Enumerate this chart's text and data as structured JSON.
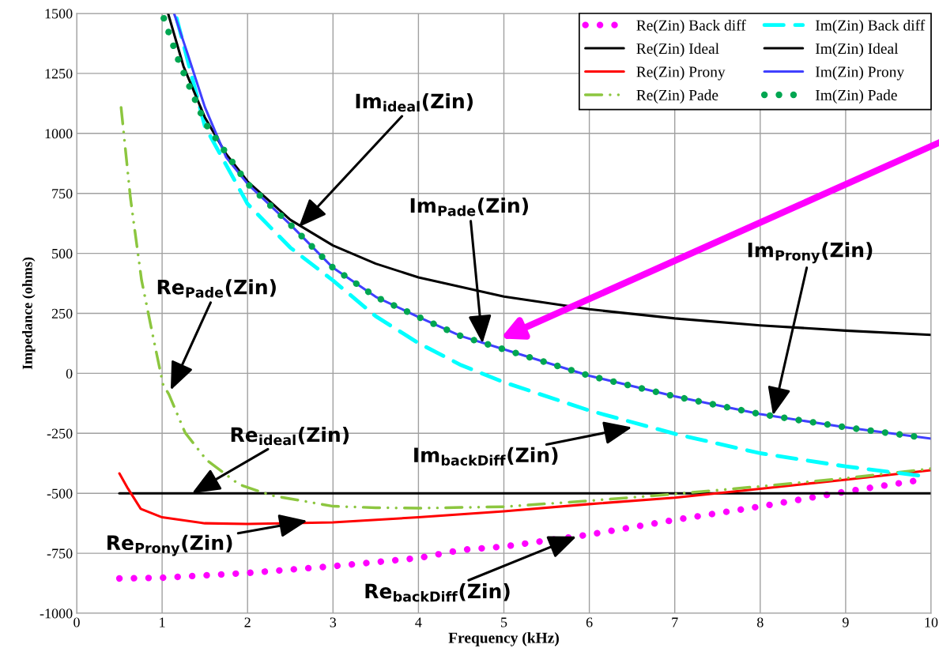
{
  "chart_data": {
    "type": "line",
    "xlabel": "Frequency (kHz)",
    "ylabel": "Impedance (ohms)",
    "xlim": [
      0,
      10
    ],
    "xticks": [
      0,
      1,
      2,
      3,
      4,
      5,
      6,
      7,
      8,
      9,
      10
    ],
    "ylim": [
      -1000,
      1500
    ],
    "yticks": [
      -1000,
      -750,
      -500,
      -250,
      0,
      250,
      500,
      750,
      1000,
      1250,
      1500
    ],
    "grid": true,
    "legend": "top right",
    "series": [
      {
        "name": "Re(Zin) Back diff",
        "color": "#ff00ff",
        "line_style": "dotted",
        "x": [
          0.5,
          1,
          2,
          3,
          4,
          4.5,
          5,
          6,
          7,
          8,
          9,
          9.9
        ],
        "values": [
          -855,
          -852,
          -832,
          -804,
          -770,
          -736,
          -722,
          -672,
          -611,
          -555,
          -493,
          -443
        ]
      },
      {
        "name": "Re(Zin) Ideal",
        "color": "#000000",
        "line_style": "solid",
        "x": [
          0.5,
          10
        ],
        "values": [
          -500,
          -500
        ]
      },
      {
        "name": "Re(Zin) Prony",
        "color": "#ff0000",
        "line_style": "solid",
        "x": [
          0.5,
          0.6,
          0.75,
          1,
          1.5,
          2,
          3,
          4,
          5,
          6,
          7,
          8,
          9,
          10
        ],
        "values": [
          -417,
          -480,
          -565,
          -600,
          -625,
          -628,
          -621,
          -600,
          -575,
          -545,
          -518,
          -481,
          -443,
          -404
        ]
      },
      {
        "name": "Re(Zin) Pade",
        "color": "#8cc63f",
        "line_style": "dashdot",
        "x": [
          0.52,
          0.63,
          0.76,
          0.89,
          1.01,
          1.08,
          1.27,
          1.52,
          1.9,
          2.28,
          3,
          3.5,
          4,
          5,
          6,
          7,
          8,
          9,
          10
        ],
        "values": [
          1108,
          729,
          387,
          160,
          -45,
          -88,
          -248,
          -361,
          -463,
          -509,
          -554,
          -560,
          -562,
          -556,
          -531,
          -503,
          -471,
          -437,
          -397
        ]
      },
      {
        "name": "Im(Zin) Back diff",
        "color": "#00ffff",
        "line_style": "dashed",
        "x": [
          1.17,
          1.5,
          2,
          2.5,
          3,
          3.5,
          4,
          4.5,
          5,
          6,
          7,
          8,
          9,
          9.9
        ],
        "values": [
          1480,
          1030,
          706,
          524,
          387,
          238,
          126,
          34,
          -37,
          -155,
          -252,
          -333,
          -388,
          -428
        ]
      },
      {
        "name": "Im(Zin) Ideal",
        "color": "#000000",
        "line_style": "solid",
        "x": [
          1.07,
          1.25,
          1.5,
          1.75,
          2,
          2.5,
          3,
          3.5,
          4,
          5,
          6,
          7,
          8,
          9,
          10
        ],
        "values": [
          1500,
          1280,
          1067,
          914,
          800,
          640,
          533,
          457,
          400,
          320,
          267,
          229,
          200,
          178,
          160
        ]
      },
      {
        "name": "Im(Zin) Prony",
        "color": "#4040ff",
        "line_style": "solid",
        "x": [
          1.14,
          1.3,
          1.5,
          1.75,
          2,
          2.5,
          3,
          3.5,
          4,
          4.5,
          5,
          6,
          7,
          8,
          9,
          10
        ],
        "values": [
          1500,
          1330,
          1110,
          900,
          790,
          620,
          440,
          319,
          235,
          155,
          100,
          -10,
          -96,
          -170,
          -225,
          -272
        ]
      },
      {
        "name": "Im(Zin) Pade",
        "color": "#00a651",
        "line_style": "dotted",
        "x": [
          1.02,
          1.2,
          1.5,
          2,
          2.5,
          3,
          3.5,
          4,
          4.5,
          5,
          6,
          7,
          8,
          9,
          9.85
        ],
        "values": [
          1480,
          1296,
          1045,
          790,
          620,
          440,
          319,
          235,
          155,
          100,
          -10,
          -96,
          -170,
          -225,
          -265
        ]
      }
    ],
    "annotations": [
      {
        "text": "Im$_{ideal}$(Zin)",
        "x": 2.6,
        "y": 610
      },
      {
        "text": "Im$_{Pade}$(Zin)",
        "x": 4.75,
        "y": 125
      },
      {
        "text": "Im$_{Prony}$(Zin)",
        "x": 8.15,
        "y": -175
      },
      {
        "text": "Re$_{Pade}$(Zin)",
        "x": 1.1,
        "y": -70
      },
      {
        "text": "Re$_{ideal}$(Zin)",
        "x": 1.35,
        "y": -500
      },
      {
        "text": "Im$_{backDiff}$(Zin)",
        "x": 6.5,
        "y": -225
      },
      {
        "text": "Re$_{Prony}$(Zin)",
        "x": 2.7,
        "y": -615
      },
      {
        "text": "Re$_{backDiff}$(Zin)",
        "x": 5.85,
        "y": -680
      }
    ]
  }
}
